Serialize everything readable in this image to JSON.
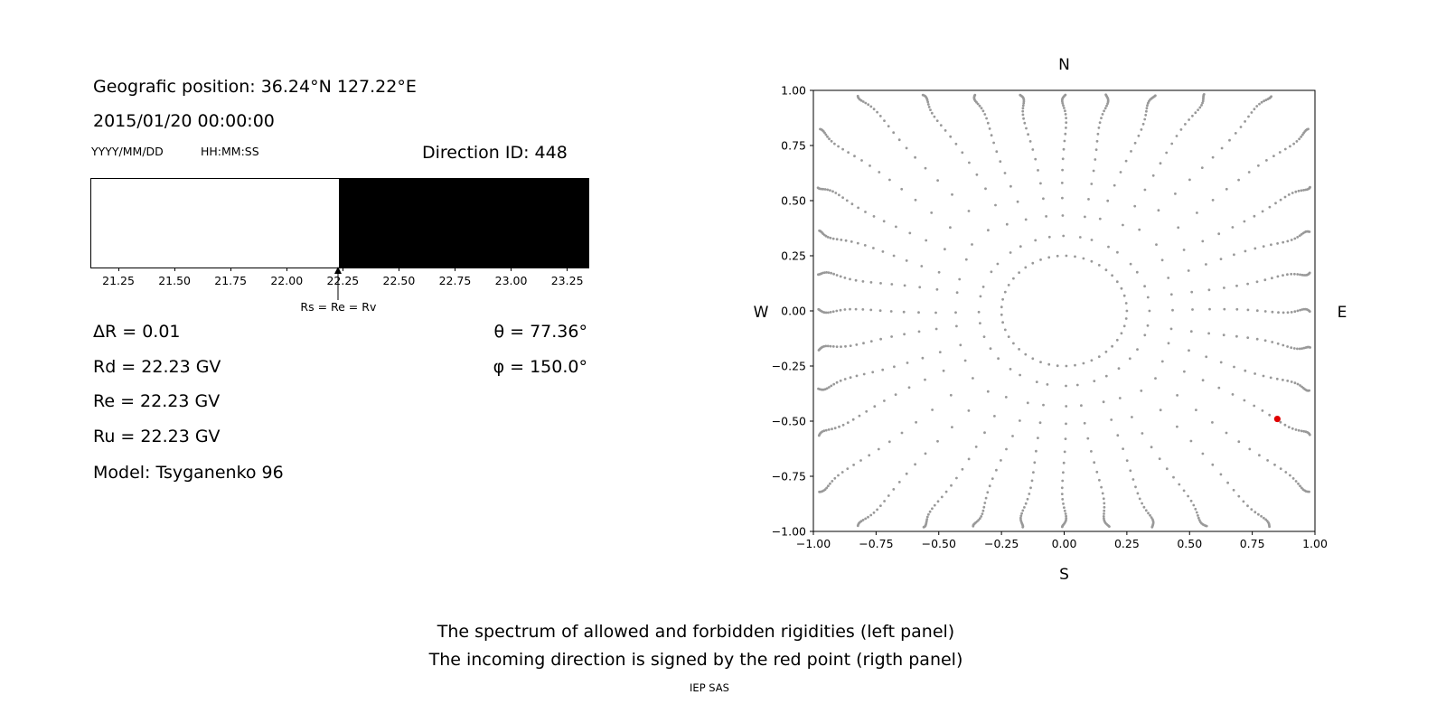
{
  "colors": {
    "background": "#ffffff",
    "allowed_fill": "#ffffff",
    "forbidden_fill": "#000000",
    "frame": "#000000",
    "dot_gray": "#999999",
    "red_point": "#e00000",
    "text": "#000000"
  },
  "left_panel": {
    "geographic_position": "Geografic position: 36.24°N 127.22°E",
    "datetime": "2015/01/20 00:00:00",
    "date_format_label": "YYYY/MM/DD",
    "time_format_label": "HH:MM:SS",
    "direction_id": "Direction ID: 448",
    "delta_r": "ΔR = 0.01",
    "rd": "Rd = 22.23 GV",
    "re": "Re = 22.23 GV",
    "ru": "Ru = 22.23 GV",
    "model": "Model: Tsyganenko 96",
    "theta": "θ = 77.36°",
    "phi": "φ = 150.0°"
  },
  "captions": {
    "line1": "The spectrum of allowed and forbidden rigidities (left panel)",
    "line2": "The incoming direction is signed by the red point (rigth panel)",
    "credit": "IEP SAS"
  },
  "chart_data": [
    {
      "type": "area",
      "name": "rigidity-spectrum",
      "xlim": [
        21.125,
        23.34
      ],
      "ticks": [
        21.25,
        21.5,
        21.75,
        22.0,
        22.25,
        22.5,
        22.75,
        23.0,
        23.25
      ],
      "tick_labels": [
        "21.25",
        "21.50",
        "21.75",
        "22.00",
        "22.25",
        "22.50",
        "22.75",
        "23.00",
        "23.25"
      ],
      "cutoff": 22.23,
      "allowed_range": [
        21.125,
        22.23
      ],
      "forbidden_range": [
        22.23,
        23.34
      ],
      "annotation": {
        "x": 22.23,
        "label": "Rs = Re = Rv"
      }
    },
    {
      "type": "scatter",
      "name": "incoming-direction-map",
      "xlim": [
        -1.0,
        1.0
      ],
      "ylim": [
        -1.0,
        1.0
      ],
      "x_ticks": [
        -1.0,
        -0.75,
        -0.5,
        -0.25,
        0.0,
        0.25,
        0.5,
        0.75,
        1.0
      ],
      "x_tick_labels": [
        "−1.00",
        "−0.75",
        "−0.50",
        "−0.25",
        "0.00",
        "0.25",
        "0.50",
        "0.75",
        "1.00"
      ],
      "y_ticks": [
        1.0,
        0.75,
        0.5,
        0.25,
        0.0,
        -0.25,
        -0.5,
        -0.75,
        -1.0
      ],
      "y_tick_labels": [
        "1.00",
        "0.75",
        "0.50",
        "0.25",
        "0.00",
        "−0.25",
        "−0.50",
        "−0.75",
        "−1.00"
      ],
      "compass": {
        "top": "N",
        "bottom": "S",
        "left": "W",
        "right": "E"
      },
      "inner_circle": {
        "radius": 0.25,
        "num_dots": 45
      },
      "spokes": {
        "count": 36,
        "start_angle_deg": 0,
        "step_deg": 10,
        "inner_radius": 0.34,
        "dots_per_spoke": 24,
        "decay": 0.86,
        "accumulation": "edge"
      },
      "red_point": {
        "x": 0.85,
        "y": -0.49
      }
    }
  ]
}
